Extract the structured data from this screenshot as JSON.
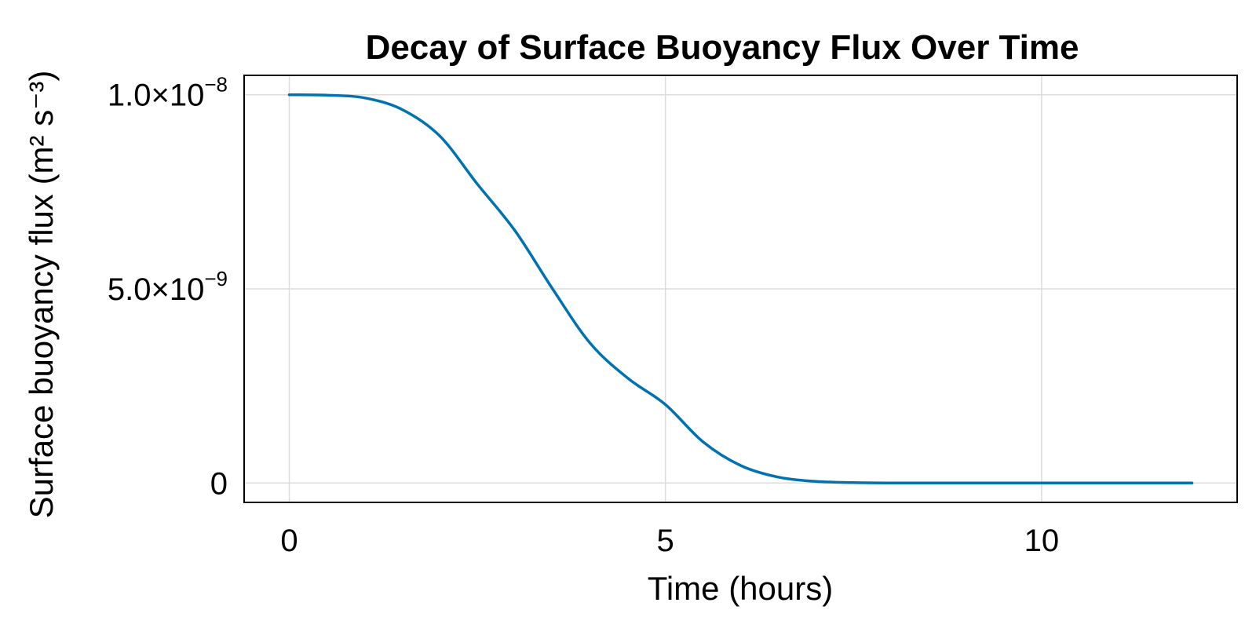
{
  "chart_data": {
    "type": "line",
    "title": "Decay of Surface Buoyancy Flux Over Time",
    "xlabel": "Time (hours)",
    "ylabel": "Surface buoyancy flux (m² s⁻³)",
    "xlim": [
      -0.6,
      12.6
    ],
    "ylim": [
      -5e-10,
      1.05e-08
    ],
    "grid": true,
    "x_ticks": [
      {
        "value": 0,
        "label": "0"
      },
      {
        "value": 5,
        "label": "5"
      },
      {
        "value": 10,
        "label": "10"
      }
    ],
    "y_ticks": [
      {
        "value": 0,
        "mantissa": "0",
        "exponent": ""
      },
      {
        "value": 5e-09,
        "mantissa": "5.0×10",
        "exponent": "−9"
      },
      {
        "value": 1e-08,
        "mantissa": "1.0×10",
        "exponent": "−8"
      }
    ],
    "line_color": "#0072B2",
    "series": [
      {
        "x": [
          0,
          0.5,
          1,
          1.5,
          2,
          2.5,
          3,
          3.5,
          4,
          4.5,
          5,
          5.5,
          6,
          6.5,
          7,
          7.5,
          8,
          8.5,
          9,
          9.5,
          10,
          10.5,
          11,
          11.5,
          12
        ],
        "values": [
          1e-08,
          9.99e-09,
          9.92e-09,
          9.62e-09,
          8.94e-09,
          7.7e-09,
          6.5e-09,
          5e-09,
          3.6e-09,
          2.7e-09,
          2.02e-09,
          1.06e-09,
          4.5e-10,
          1.5e-10,
          4e-11,
          1e-11,
          0,
          0,
          0,
          0,
          0,
          0,
          0,
          0,
          0
        ]
      }
    ]
  }
}
